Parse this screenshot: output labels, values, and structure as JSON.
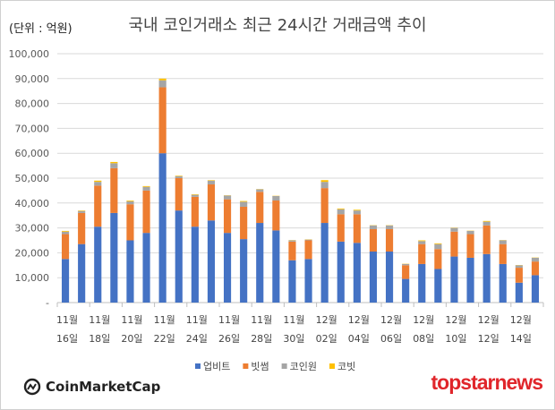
{
  "chart_data": {
    "type": "bar",
    "stacked": true,
    "title": "국내 코인거래소 최근 24시간 거래금액 추이",
    "unit_label": "(단위 : 억원)",
    "xlabel": "",
    "ylabel": "",
    "ylim": [
      0,
      100000
    ],
    "yticks": [
      "-",
      "10,000",
      "20,000",
      "30,000",
      "40,000",
      "50,000",
      "60,000",
      "70,000",
      "80,000",
      "90,000",
      "100,000"
    ],
    "grid": true,
    "legend_position": "bottom",
    "categories": [
      "11/16",
      "11/17",
      "11/18",
      "11/19",
      "11/20",
      "11/21",
      "11/22",
      "11/23",
      "11/24",
      "11/25",
      "11/26",
      "11/27",
      "11/28",
      "11/29",
      "11/30",
      "12/01",
      "12/02",
      "12/03",
      "12/04",
      "12/05",
      "12/06",
      "12/07",
      "12/08",
      "12/09",
      "12/10",
      "12/11",
      "12/12",
      "12/13",
      "12/14",
      "12/15"
    ],
    "xtick_labels": [
      {
        "index": 0,
        "month": "11월",
        "day": "16일"
      },
      {
        "index": 2,
        "month": "11월",
        "day": "18일"
      },
      {
        "index": 4,
        "month": "11월",
        "day": "20일"
      },
      {
        "index": 6,
        "month": "11월",
        "day": "22일"
      },
      {
        "index": 8,
        "month": "11월",
        "day": "24일"
      },
      {
        "index": 10,
        "month": "11월",
        "day": "26일"
      },
      {
        "index": 12,
        "month": "11월",
        "day": "28일"
      },
      {
        "index": 14,
        "month": "11월",
        "day": "30일"
      },
      {
        "index": 16,
        "month": "12월",
        "day": "02일"
      },
      {
        "index": 18,
        "month": "12월",
        "day": "04일"
      },
      {
        "index": 20,
        "month": "12월",
        "day": "06일"
      },
      {
        "index": 22,
        "month": "12월",
        "day": "08일"
      },
      {
        "index": 24,
        "month": "12월",
        "day": "10일"
      },
      {
        "index": 26,
        "month": "12월",
        "day": "12일"
      },
      {
        "index": 28,
        "month": "12월",
        "day": "14일"
      }
    ],
    "series": [
      {
        "name": "업비트",
        "color": "#4472C4",
        "values": [
          17500,
          23500,
          30500,
          36000,
          25000,
          28000,
          60000,
          37000,
          30500,
          33000,
          28000,
          25500,
          32000,
          29000,
          17000,
          17500,
          32000,
          24500,
          24000,
          20500,
          20500,
          9500,
          15500,
          13500,
          18500,
          18000,
          19500,
          15500,
          8000,
          11000
        ]
      },
      {
        "name": "빗썸",
        "color": "#ED7D31",
        "values": [
          10000,
          12500,
          16500,
          18000,
          14500,
          17000,
          26500,
          13000,
          12000,
          14500,
          13500,
          13000,
          12500,
          12000,
          7500,
          7500,
          14000,
          11000,
          11500,
          9000,
          9000,
          5500,
          8000,
          8000,
          10000,
          9500,
          11500,
          8000,
          6000,
          5500
        ]
      },
      {
        "name": "코인원",
        "color": "#A5A5A5",
        "values": [
          1000,
          800,
          1500,
          2000,
          1200,
          1500,
          2800,
          800,
          800,
          1500,
          1500,
          2000,
          1000,
          1800,
          500,
          300,
          2500,
          2000,
          1500,
          1500,
          1500,
          500,
          1200,
          2000,
          1500,
          1300,
          1500,
          1500,
          1000,
          1500
        ]
      },
      {
        "name": "코빗",
        "color": "#FFC000",
        "values": [
          300,
          200,
          500,
          500,
          300,
          300,
          700,
          200,
          200,
          200,
          100,
          300,
          100,
          100,
          100,
          100,
          700,
          300,
          300,
          100,
          100,
          100,
          300,
          300,
          100,
          100,
          300,
          100,
          100,
          100
        ]
      }
    ]
  },
  "logos": {
    "left": "CoinMarketCap",
    "right": "topstarnews"
  }
}
